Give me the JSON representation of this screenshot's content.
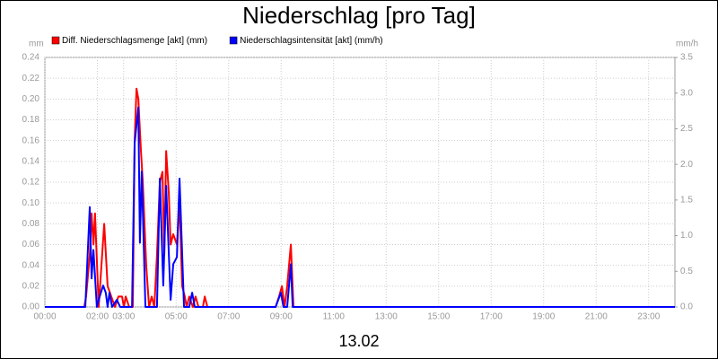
{
  "chart_data": {
    "type": "line",
    "title": "Niederschlag [pro Tag]",
    "xlabel": "13.02",
    "ylabel": "mm",
    "y2label": "mm/h",
    "xlim": [
      0,
      24
    ],
    "xticks": [
      {
        "value": 0,
        "label": "00:00"
      },
      {
        "value": 2,
        "label": "02:00"
      },
      {
        "value": 3,
        "label": "03:00"
      },
      {
        "value": 5,
        "label": "05:00"
      },
      {
        "value": 7,
        "label": "07:00"
      },
      {
        "value": 9,
        "label": "09:00"
      },
      {
        "value": 11,
        "label": "11:00"
      },
      {
        "value": 13,
        "label": "13:00"
      },
      {
        "value": 15,
        "label": "15:00"
      },
      {
        "value": 17,
        "label": "17:00"
      },
      {
        "value": 19,
        "label": "19:00"
      },
      {
        "value": 21,
        "label": "21:00"
      },
      {
        "value": 23,
        "label": "23:00"
      }
    ],
    "ylim": [
      0,
      0.24
    ],
    "yticks": [
      {
        "value": 0,
        "label": "0.00"
      },
      {
        "value": 0.02,
        "label": "0.02"
      },
      {
        "value": 0.04,
        "label": "0.04"
      },
      {
        "value": 0.06,
        "label": "0.06"
      },
      {
        "value": 0.08,
        "label": "0.08"
      },
      {
        "value": 0.1,
        "label": "0.10"
      },
      {
        "value": 0.12,
        "label": "0.12"
      },
      {
        "value": 0.14,
        "label": "0.14"
      },
      {
        "value": 0.16,
        "label": "0.16"
      },
      {
        "value": 0.18,
        "label": "0.18"
      },
      {
        "value": 0.2,
        "label": "0.20"
      },
      {
        "value": 0.22,
        "label": "0.22"
      },
      {
        "value": 0.24,
        "label": "0.24"
      }
    ],
    "y2lim": [
      0,
      3.5
    ],
    "y2ticks": [
      {
        "value": 0,
        "label": "0.0"
      },
      {
        "value": 0.5,
        "label": "0.5"
      },
      {
        "value": 1,
        "label": "1.0"
      },
      {
        "value": 1.5,
        "label": "1.5"
      },
      {
        "value": 2,
        "label": "2.0"
      },
      {
        "value": 2.5,
        "label": "2.5"
      },
      {
        "value": 3,
        "label": "3.0"
      },
      {
        "value": 3.5,
        "label": "3.5"
      }
    ],
    "grid": true,
    "series": [
      {
        "name": "Diff. Niederschlagsmenge [akt] (mm)",
        "color": "#ff0000",
        "x": [
          0,
          1.5,
          1.57,
          1.71,
          1.78,
          1.85,
          1.91,
          2.05,
          2.26,
          2.39,
          2.53,
          2.67,
          2.8,
          2.94,
          3.01,
          3.08,
          3.21,
          3.35,
          3.42,
          3.49,
          3.56,
          3.66,
          3.73,
          3.86,
          3.97,
          4.07,
          4.17,
          4.27,
          4.38,
          4.48,
          4.55,
          4.62,
          4.72,
          4.79,
          4.89,
          5.03,
          5.13,
          5.23,
          5.33,
          5.4,
          5.5,
          5.64,
          5.74,
          5.85,
          6.02,
          6.09,
          6.19,
          8.79,
          8.92,
          9.03,
          9.13,
          9.23,
          9.37,
          9.47,
          24
        ],
        "values": [
          0,
          0,
          0.01,
          0.05,
          0.09,
          0.06,
          0.09,
          0,
          0.08,
          0.02,
          0.01,
          0,
          0.01,
          0.01,
          0,
          0.01,
          0,
          0,
          0.16,
          0.21,
          0.2,
          0.15,
          0.12,
          0.04,
          0,
          0.01,
          0,
          0.05,
          0.12,
          0.13,
          0.05,
          0.15,
          0.11,
          0.06,
          0.07,
          0.06,
          0.1,
          0.02,
          0.01,
          0,
          0.01,
          0,
          0.01,
          0,
          0,
          0.01,
          0,
          0,
          0.01,
          0.02,
          0,
          0.02,
          0.06,
          0,
          0
        ]
      },
      {
        "name": "Niederschlagsintensität [akt] (mm/h)",
        "color": "#0000ff",
        "x": [
          0,
          1.54,
          1.71,
          1.78,
          1.85,
          1.98,
          2.09,
          2.22,
          2.32,
          2.39,
          2.46,
          2.56,
          2.74,
          2.87,
          3.32,
          3.42,
          3.56,
          3.62,
          3.69,
          3.83,
          4.27,
          4.38,
          4.51,
          4.62,
          4.79,
          4.89,
          5.03,
          5.13,
          5.3,
          5.5,
          5.61,
          5.71,
          8.79,
          8.99,
          9.09,
          9.23,
          9.37,
          9.44,
          24
        ],
        "values": [
          0,
          0,
          1.4,
          0.4,
          0.8,
          0,
          0.15,
          0.3,
          0.2,
          0,
          0.2,
          0,
          0.1,
          0,
          0,
          2.3,
          2.8,
          0.9,
          1.9,
          0,
          0,
          1.8,
          0.3,
          1.7,
          0.1,
          0.6,
          0.7,
          1.8,
          0,
          0,
          0.2,
          0,
          0,
          0.2,
          0,
          0,
          0.6,
          0,
          0
        ],
        "axis": "y2"
      }
    ]
  }
}
